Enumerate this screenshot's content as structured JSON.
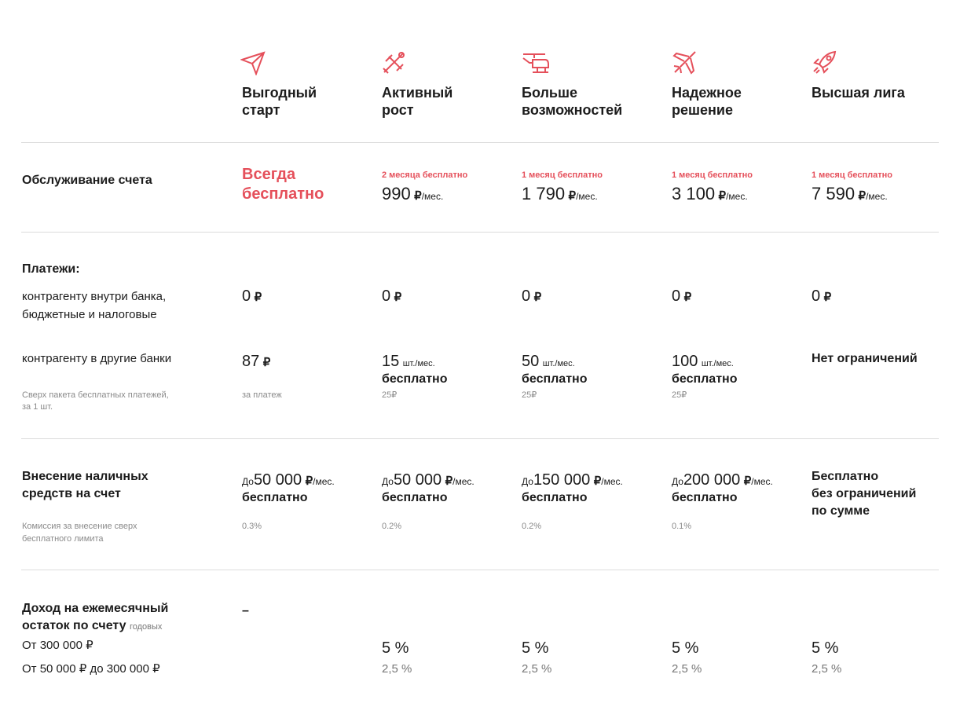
{
  "plans": [
    {
      "name_lines": [
        "Выгодный",
        "старт"
      ]
    },
    {
      "name_lines": [
        "Активный",
        "рост"
      ]
    },
    {
      "name_lines": [
        "Больше",
        "возможностей"
      ]
    },
    {
      "name_lines": [
        "Надежное",
        "решение"
      ]
    },
    {
      "name_lines": [
        "Высшая лига"
      ]
    }
  ],
  "service": {
    "label": "Обслуживание счета",
    "first_lines": [
      "Всегда",
      "бесплатно"
    ],
    "paid": [
      {
        "promo": "2 месяца бесплатно",
        "price": "990",
        "currency": "₽",
        "period": "/мес."
      },
      {
        "promo": "1 месяц бесплатно",
        "price": "1 790",
        "currency": "₽",
        "period": "/мес."
      },
      {
        "promo": "1 месяц бесплатно",
        "price": "3 100",
        "currency": "₽",
        "period": "/мес."
      },
      {
        "promo": "1 месяц бесплатно",
        "price": "7 590",
        "currency": "₽",
        "period": "/мес."
      }
    ]
  },
  "payments": {
    "title": "Платежи:",
    "internal": {
      "label_lines": [
        "контрагенту внутри банка,",
        "бюджетные и налоговые"
      ],
      "values": [
        {
          "amount": "0",
          "currency": "₽"
        },
        {
          "amount": "0",
          "currency": "₽"
        },
        {
          "amount": "0",
          "currency": "₽"
        },
        {
          "amount": "0",
          "currency": "₽"
        },
        {
          "amount": "0",
          "currency": "₽"
        }
      ]
    },
    "external": {
      "label": "контрагенту в другие банки",
      "note_lines": [
        "Сверх пакета бесплатных платежей,",
        "за 1 шт."
      ],
      "first": {
        "amount": "87",
        "currency": "₽",
        "note": "за платеж"
      },
      "packages": [
        {
          "amount": "15",
          "unit": "шт./мес.",
          "free": "бесплатно",
          "note": "25₽"
        },
        {
          "amount": "50",
          "unit": "шт./мес.",
          "free": "бесплатно",
          "note": "25₽"
        },
        {
          "amount": "100",
          "unit": "шт./мес.",
          "free": "бесплатно",
          "note": "25₽"
        }
      ],
      "last": "Нет ограничений"
    }
  },
  "cash": {
    "label_lines": [
      "Внесение наличных",
      "средств на счет"
    ],
    "note_lines": [
      "Комиссия за внесение сверх",
      "бесплатного лимита"
    ],
    "limits": [
      {
        "prefix": "До",
        "amount": "50 000",
        "currency": "₽",
        "period": "/мес.",
        "free": "бесплатно",
        "fee": "0.3%"
      },
      {
        "prefix": "До",
        "amount": "50 000",
        "currency": "₽",
        "period": "/мес.",
        "free": "бесплатно",
        "fee": "0.2%"
      },
      {
        "prefix": "До",
        "amount": "150 000",
        "currency": "₽",
        "period": "/мес.",
        "free": "бесплатно",
        "fee": "0.2%"
      },
      {
        "prefix": "До",
        "amount": "200 000",
        "currency": "₽",
        "period": "/мес.",
        "free": "бесплатно",
        "fee": "0.1%"
      }
    ],
    "last_lines": [
      "Бесплатно",
      "без ограничений",
      "по сумме"
    ]
  },
  "income": {
    "label_lines": [
      "Доход на ежемесячный",
      "остаток по счету"
    ],
    "unit": "годовых",
    "tiers": [
      "От 300 000 ₽",
      "От 50 000 ₽ до 300 000 ₽"
    ],
    "first": "–",
    "rates": [
      {
        "high": "5 %",
        "low": "2,5 %"
      },
      {
        "high": "5 %",
        "low": "2,5 %"
      },
      {
        "high": "5 %",
        "low": "2,5 %"
      },
      {
        "high": "5 %",
        "low": "2,5 %"
      }
    ]
  }
}
